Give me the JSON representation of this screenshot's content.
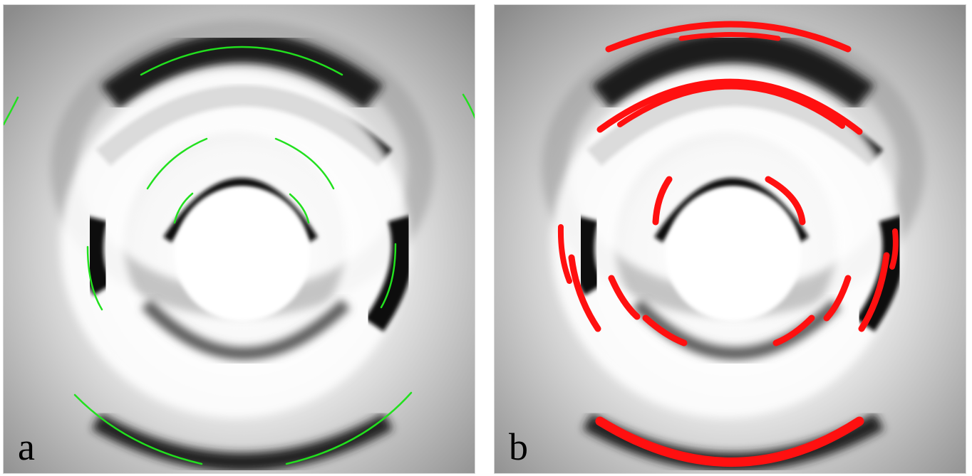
{
  "panels": [
    {
      "id": "a",
      "label": "a",
      "overlay_color": "#22e01e"
    },
    {
      "id": "b",
      "label": "b",
      "overlay_color": "#ff1010"
    }
  ]
}
